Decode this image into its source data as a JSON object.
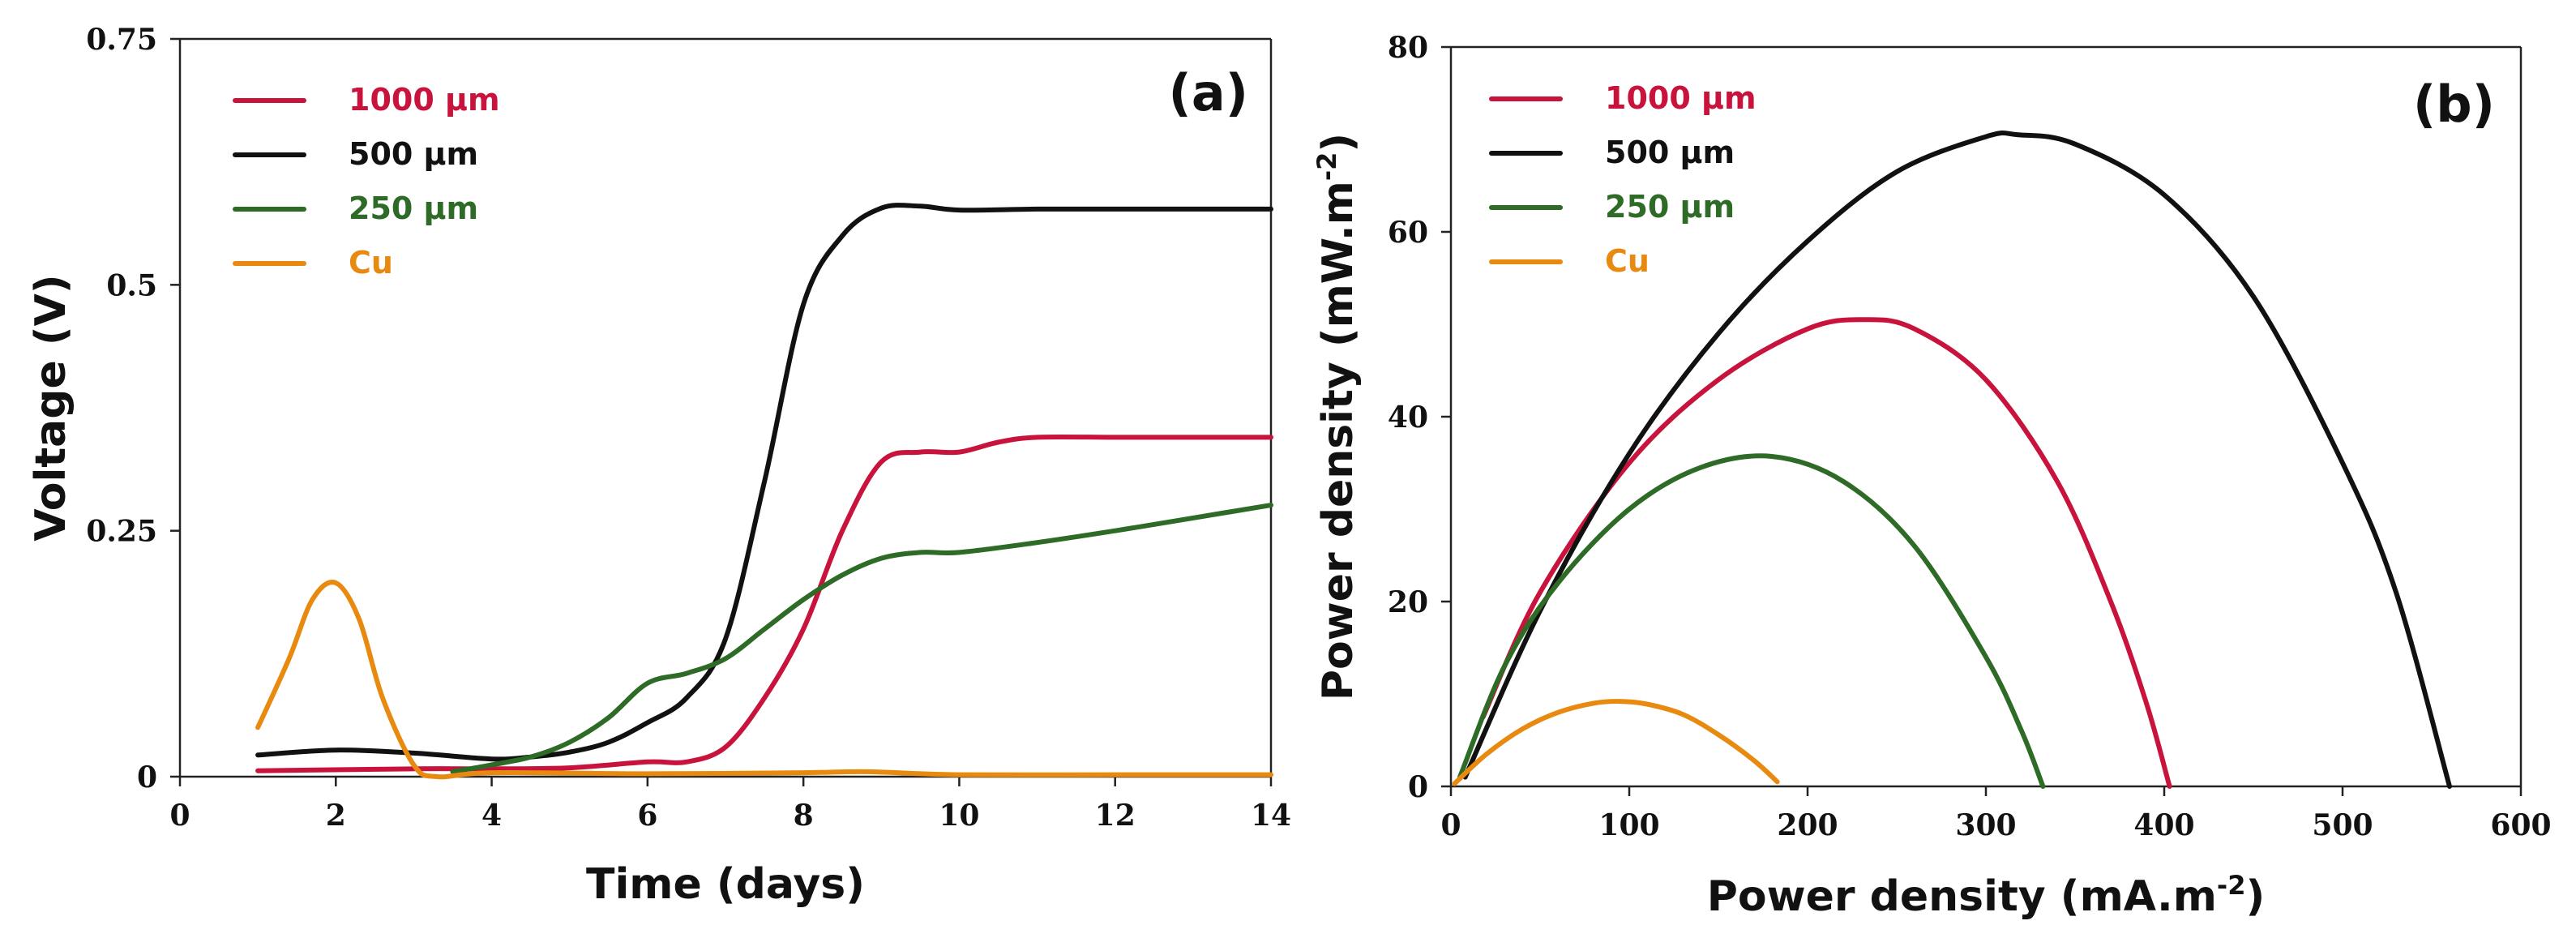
{
  "chart_data": [
    {
      "id": "a",
      "type": "line",
      "panel_label": "(a)",
      "xlabel": "Time (days)",
      "ylabel": "Voltage (V)",
      "xlim": [
        0,
        14
      ],
      "ylim": [
        0,
        0.75
      ],
      "xticks": [
        0,
        2,
        4,
        6,
        8,
        10,
        12,
        14
      ],
      "xtick_labels": [
        "0",
        "2",
        "4",
        "6",
        "8",
        "10",
        "12",
        "14"
      ],
      "yticks": [
        0,
        0.25,
        0.5,
        0.75
      ],
      "ytick_labels": [
        "0",
        "0.25",
        "0.5",
        "0.75"
      ],
      "legend_position": "top-left",
      "series": [
        {
          "name": "1000 µm",
          "color": "#c8143c",
          "x": [
            1,
            3,
            4,
            5,
            6,
            6.5,
            7,
            7.5,
            8,
            8.5,
            9,
            9.5,
            10,
            10.5,
            11,
            12,
            13,
            14
          ],
          "y": [
            0.006,
            0.008,
            0.008,
            0.009,
            0.015,
            0.015,
            0.03,
            0.08,
            0.15,
            0.25,
            0.32,
            0.33,
            0.33,
            0.34,
            0.345,
            0.345,
            0.345,
            0.345
          ]
        },
        {
          "name": "500 µm",
          "color": "#111111",
          "x": [
            1,
            2,
            3,
            4,
            4.5,
            5,
            5.5,
            6,
            6.5,
            7,
            7.5,
            8,
            8.5,
            9,
            9.5,
            10,
            11,
            12,
            13,
            14
          ],
          "y": [
            0.022,
            0.027,
            0.024,
            0.018,
            0.02,
            0.025,
            0.035,
            0.055,
            0.08,
            0.14,
            0.3,
            0.48,
            0.55,
            0.578,
            0.58,
            0.576,
            0.577,
            0.577,
            0.577,
            0.577
          ]
        },
        {
          "name": "250 µm",
          "color": "#2e6b26",
          "x": [
            3.5,
            4,
            4.5,
            5,
            5.5,
            6,
            6.5,
            7,
            7.5,
            8,
            8.5,
            9,
            9.5,
            10,
            11,
            12,
            13,
            14
          ],
          "y": [
            0.005,
            0.012,
            0.02,
            0.035,
            0.06,
            0.095,
            0.105,
            0.12,
            0.15,
            0.18,
            0.205,
            0.222,
            0.228,
            0.228,
            0.238,
            0.25,
            0.263,
            0.276
          ]
        },
        {
          "name": "Cu",
          "color": "#e88a10",
          "x": [
            1,
            1.4,
            1.7,
            2,
            2.3,
            2.6,
            3,
            3.3,
            4,
            6,
            8,
            8.8,
            10,
            12,
            14
          ],
          "y": [
            0.05,
            0.12,
            0.18,
            0.197,
            0.16,
            0.08,
            0.012,
            0.0,
            0.004,
            0.003,
            0.004,
            0.005,
            0.002,
            0.002,
            0.002
          ]
        }
      ]
    },
    {
      "id": "b",
      "type": "line",
      "panel_label": "(b)",
      "xlabel": "Power density (mA.m",
      "xlabel_sup": "-2",
      "xlabel_end": ")",
      "ylabel": "Power density (mW.m",
      "ylabel_sup": "-2",
      "ylabel_end": ")",
      "xlim": [
        0,
        600
      ],
      "ylim": [
        0,
        80
      ],
      "xticks": [
        0,
        100,
        200,
        300,
        400,
        500,
        600
      ],
      "xtick_labels": [
        "0",
        "100",
        "200",
        "300",
        "400",
        "500",
        "600"
      ],
      "yticks": [
        0,
        20,
        40,
        60,
        80
      ],
      "ytick_labels": [
        "0",
        "20",
        "40",
        "60",
        "80"
      ],
      "legend_position": "top-left",
      "series": [
        {
          "name": "1000 µm",
          "color": "#c8143c",
          "x": [
            18,
            50,
            100,
            150,
            200,
            232,
            260,
            300,
            340,
            370,
            390,
            403
          ],
          "y": [
            7.5,
            21,
            35,
            44,
            49.5,
            50.5,
            49.5,
            44,
            33,
            20,
            9,
            0
          ]
        },
        {
          "name": "500 µm",
          "color": "#111111",
          "x": [
            8,
            50,
            100,
            150,
            200,
            250,
            300,
            318,
            350,
            400,
            450,
            500,
            530,
            560
          ],
          "y": [
            1,
            19,
            36,
            49,
            59,
            66.5,
            70.3,
            70.5,
            69.5,
            64,
            53,
            35,
            21,
            0
          ]
        },
        {
          "name": "250 µm",
          "color": "#2e6b26",
          "x": [
            5,
            30,
            60,
            100,
            140,
            180,
            220,
            260,
            300,
            320,
            332
          ],
          "y": [
            1,
            13,
            22,
            30,
            34.5,
            35.7,
            33,
            26,
            14,
            6,
            0
          ]
        },
        {
          "name": "Cu",
          "color": "#e88a10",
          "x": [
            2,
            20,
            40,
            60,
            80,
            95,
            110,
            130,
            150,
            170,
            183
          ],
          "y": [
            0.3,
            3.5,
            6.2,
            8,
            9,
            9.2,
            8.9,
            7.8,
            5.6,
            2.8,
            0.5
          ]
        }
      ]
    }
  ]
}
